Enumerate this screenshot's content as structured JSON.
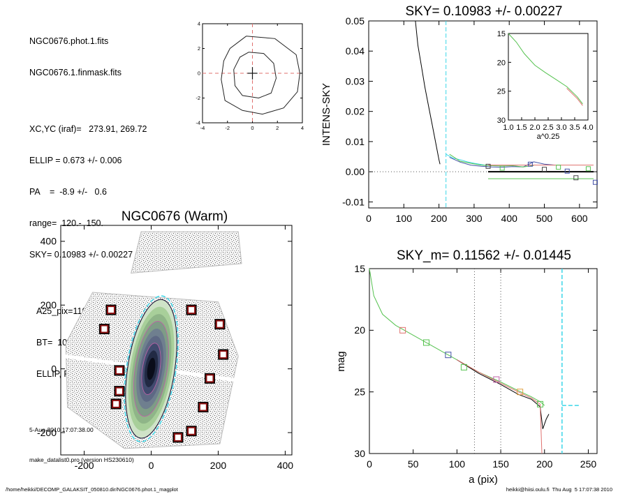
{
  "info": {
    "lines_a": [
      "NGC0676.phot.1.fits",
      "NGC0676.1.finmask.fits"
    ],
    "lines_b": [
      "XC,YC (iraf)=   273.91, 269.72",
      "ELLIP = 0.673 +/- 0.006",
      "PA    =  -8.9 +/-   0.6",
      "range=  120.-  150.",
      "SKY= 0.10983 +/- 0.00227"
    ],
    "lines_c": [
      "A25_pix=110.2   T= 0.0",
      "BT=  10.71   MABS=-21.39",
      "ELLIP, PA= 0.745   173.5"
    ],
    "timestamp": "5-Aug-2010 17:07:38.00",
    "program": "make_datalist0.pro (version HS230610)"
  },
  "footer": {
    "left": "/home/heikki/DECOMP_GALAKSIT_050810.dir/NGC0676.phot.1_magplot",
    "right": "heikki@hiisi.oulu.fi  Thu Aug  5 17:07:38 2010"
  },
  "colors": {
    "axis": "#000000",
    "cyan": "#3ad6e8",
    "red": "#e0706e",
    "green": "#55c24f",
    "blue": "#4452a8",
    "magenta": "#c060a8",
    "orange": "#e0a040",
    "box": "#8b1010"
  },
  "chart_data": [
    {
      "type": "line",
      "panel": "contour-inset",
      "title": "",
      "xlabel": "",
      "ylabel": "",
      "xlim": [
        -4,
        4
      ],
      "ylim": [
        -4,
        4
      ],
      "xticks": [
        "-4",
        "-2",
        "0",
        "2",
        "4"
      ],
      "yticks": [
        "-4",
        "-2",
        "0",
        "2",
        "4"
      ]
    },
    {
      "type": "line",
      "panel": "sky-profile",
      "title": "SKY= 0.10983 +/- 0.00227",
      "xlabel": "",
      "ylabel": "INTENS-SKY",
      "xlim": [
        0,
        650
      ],
      "ylim": [
        -0.012,
        0.05
      ],
      "xticks": [
        "0",
        "100",
        "200",
        "300",
        "400",
        "500",
        "600"
      ],
      "yticks": [
        "-0.01",
        "0.00",
        "0.01",
        "0.02",
        "0.03",
        "0.04",
        "0.05"
      ],
      "series": [
        {
          "color": "black",
          "x": [
            133,
            140,
            150,
            160,
            170,
            180,
            190,
            195,
            200,
            203
          ],
          "y": [
            0.05,
            0.042,
            0.035,
            0.028,
            0.022,
            0.016,
            0.01,
            0.007,
            0.004,
            0.0025
          ]
        },
        {
          "color": "cyan",
          "x": [
            220,
            240,
            260,
            280,
            300,
            320,
            340
          ],
          "y": [
            0.0058,
            0.0045,
            0.004,
            0.0033,
            0.0028,
            0.0024,
            0.002
          ]
        },
        {
          "color": "blue",
          "x": [
            230,
            260,
            290,
            320,
            350,
            380,
            410,
            440,
            470,
            500,
            530
          ],
          "y": [
            0.0048,
            0.0032,
            0.0022,
            0.0018,
            0.0016,
            0.0015,
            0.0017,
            0.0016,
            0.0033,
            0.0025,
            0.0022
          ]
        },
        {
          "color": "green",
          "x": [
            230,
            260,
            290,
            320,
            350,
            380,
            410,
            440,
            470
          ],
          "y": [
            0.0058,
            0.0035,
            0.0028,
            0.0022,
            0.002,
            0.0019,
            0.002,
            0.0016,
            0.0021
          ]
        },
        {
          "color": "red",
          "x": [
            340,
            640
          ],
          "y": [
            0.0022,
            0.0022
          ]
        },
        {
          "color": "black",
          "x": [
            340,
            640
          ],
          "y": [
            0.0,
            0.0
          ]
        },
        {
          "color": "green",
          "x": [
            340,
            640
          ],
          "y": [
            -0.0023,
            -0.0023
          ]
        }
      ],
      "markers": {
        "x": [
          340,
          380,
          460,
          500,
          540,
          565,
          590,
          625,
          645
        ],
        "y": [
          0.0018,
          0.0012,
          0.0025,
          0.0008,
          0.0015,
          0.0002,
          -0.002,
          0.001,
          -0.0035
        ]
      },
      "vlines": [
        {
          "x": 220,
          "color": "cyan"
        }
      ],
      "hlines": [
        {
          "y": 0.0,
          "style": "dotted"
        }
      ],
      "inset": {
        "xlabel": "a^0.25",
        "xlim": [
          1.0,
          4.0
        ],
        "ylim": [
          15,
          30
        ],
        "xticks": [
          "1.0",
          "1.5",
          "2.0",
          "2.5",
          "3.0",
          "3.5",
          "4.0"
        ],
        "yticks": [
          "15",
          "20",
          "25",
          "30"
        ],
        "x": [
          1.0,
          1.3,
          1.6,
          2.0,
          2.4,
          2.8,
          3.2,
          3.6,
          3.8
        ],
        "y": [
          15,
          16.5,
          18.5,
          20.5,
          21.8,
          23.0,
          24.2,
          26.0,
          27.2
        ]
      }
    },
    {
      "type": "scatter",
      "panel": "galaxy-image",
      "title": "NGC0676 (Warm)",
      "xlabel": "",
      "ylabel": "",
      "xlim": [
        -270,
        420
      ],
      "ylim": [
        -270,
        450
      ],
      "xticks": [
        "-200",
        "0",
        "200",
        "400"
      ],
      "yticks": [
        "-200",
        "0",
        "200",
        "400"
      ],
      "mask_boxes": {
        "x": [
          -120,
          -140,
          -95,
          -95,
          -105,
          120,
          205,
          215,
          175,
          155,
          120,
          80
        ],
        "y": [
          185,
          125,
          -5,
          -70,
          -110,
          185,
          140,
          45,
          -30,
          -120,
          -195,
          -215
        ]
      },
      "ellipse": {
        "center": [
          0,
          0
        ],
        "a": 220,
        "b": 70,
        "pa": -8.9
      }
    },
    {
      "type": "line",
      "panel": "mag-profile",
      "title": "SKY_m=  0.11562 +/- 0.01445",
      "xlabel": "a (pix)",
      "ylabel": "mag",
      "xlim": [
        0,
        260
      ],
      "ylim": [
        30,
        15
      ],
      "xticks": [
        "0",
        "50",
        "100",
        "150",
        "200",
        "250"
      ],
      "yticks": [
        "15",
        "20",
        "25",
        "30"
      ],
      "series": [
        {
          "color": "green",
          "x": [
            0,
            5,
            15,
            30,
            50,
            75,
            100,
            125,
            150,
            170,
            185,
            195,
            200
          ],
          "y": [
            15.0,
            17.2,
            18.7,
            19.6,
            20.4,
            21.4,
            22.4,
            23.4,
            24.2,
            24.9,
            25.4,
            25.8,
            26.1
          ]
        },
        {
          "color": "black",
          "x": [
            100,
            125,
            150,
            170,
            185,
            195,
            198,
            202,
            205
          ],
          "y": [
            22.4,
            23.5,
            24.4,
            25.2,
            25.6,
            26.2,
            28.0,
            27.2,
            26.8
          ]
        },
        {
          "color": "red",
          "x": [
            100,
            125,
            150,
            170,
            185,
            195,
            197
          ],
          "y": [
            22.4,
            23.4,
            24.3,
            25.0,
            25.5,
            26.0,
            30.0
          ]
        }
      ],
      "markers": {
        "x": [
          38,
          65,
          90,
          108,
          145,
          172,
          195
        ],
        "y": [
          20.0,
          21.0,
          22.0,
          23.0,
          24.0,
          25.0,
          26.0
        ]
      },
      "vlines": [
        {
          "x": 120,
          "style": "dotted"
        },
        {
          "x": 150,
          "style": "dotted"
        },
        {
          "x": 220,
          "color": "cyan"
        }
      ],
      "hlines": [
        {
          "y": 26.1,
          "x0": 220,
          "x1": 240,
          "color": "cyan"
        }
      ]
    }
  ]
}
